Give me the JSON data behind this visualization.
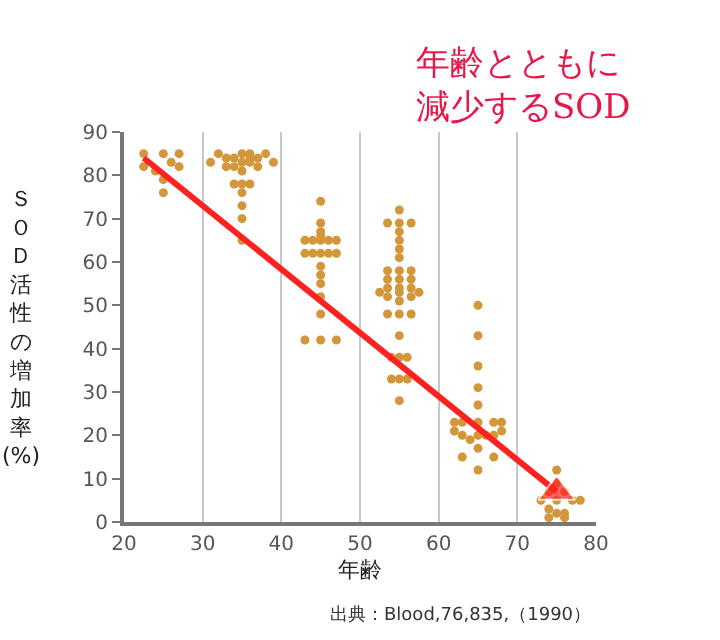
{
  "chart_data": {
    "type": "scatter",
    "title": "年齢とともに減少するSOD",
    "xlabel": "年齢",
    "ylabel": "ＳＯＤ活性の増加率(%)",
    "annotations": [
      "出典：Blood,76,835,（1990）"
    ],
    "xlim": [
      20,
      80
    ],
    "xticks": [
      20,
      30,
      40,
      50,
      60,
      70,
      80
    ],
    "ylim": [
      0,
      90
    ],
    "yticks": [
      0,
      10,
      20,
      30,
      40,
      50,
      60,
      70,
      80,
      90
    ],
    "grid": "x",
    "marker": "circle",
    "series": [
      {
        "color": "#d4963a",
        "x": [
          22.5,
          22.5,
          24,
          25,
          25,
          25,
          26,
          27,
          27,
          31,
          32,
          33,
          33,
          34,
          34,
          35,
          35,
          35,
          35,
          35,
          35,
          35,
          35,
          36,
          36,
          34,
          36,
          37,
          37,
          38,
          39,
          36,
          45,
          45,
          45,
          45,
          45,
          45,
          45,
          45,
          45,
          45,
          45,
          45,
          43,
          44,
          46,
          47,
          43,
          44,
          46,
          47,
          43,
          47,
          55,
          55,
          55,
          55,
          55,
          55,
          55,
          55,
          55,
          55,
          55,
          55,
          55,
          55,
          55,
          55,
          53.5,
          56.5,
          53.5,
          53.5,
          53.5,
          53.5,
          56.5,
          56.5,
          56.5,
          56.5,
          52.5,
          57.5,
          53.5,
          56.5,
          54,
          56,
          54,
          56,
          65,
          65,
          65,
          65,
          65,
          65,
          65,
          65,
          65,
          62,
          63,
          67,
          68,
          62,
          63,
          68,
          67,
          63,
          67,
          64,
          66,
          75,
          75,
          73,
          74,
          76,
          77,
          78,
          74,
          75,
          76,
          74,
          76,
          75
        ],
        "values": [
          85,
          82,
          81,
          85,
          79,
          76,
          83,
          85,
          82,
          83,
          85,
          84,
          82,
          84,
          82,
          85,
          83,
          81,
          78,
          76,
          73,
          70,
          65,
          85,
          83,
          78,
          78,
          84,
          82,
          85,
          83,
          84,
          74,
          69,
          67,
          66,
          65,
          62,
          59,
          57,
          55,
          52,
          48,
          42,
          65,
          65,
          65,
          65,
          62,
          62,
          62,
          62,
          42,
          42,
          72,
          69,
          67,
          65,
          63,
          61,
          58,
          56,
          54,
          53,
          51,
          48,
          43,
          38,
          33,
          28,
          69,
          69,
          58,
          56,
          54,
          52,
          58,
          56,
          54,
          52,
          53,
          53,
          48,
          48,
          38,
          38,
          33,
          33,
          50,
          43,
          36,
          31,
          27,
          23,
          20,
          17,
          12,
          23,
          23,
          23,
          23,
          21,
          20,
          21,
          20,
          15,
          15,
          19,
          20,
          12,
          9,
          5,
          7,
          7,
          5,
          5,
          3,
          2,
          2,
          1,
          1,
          5
        ]
      },
      {
        "type": "line",
        "color": "#ff2020",
        "marker": "triangle",
        "x": [
          22.5,
          75
        ],
        "values": [
          84,
          7
        ]
      }
    ]
  }
}
